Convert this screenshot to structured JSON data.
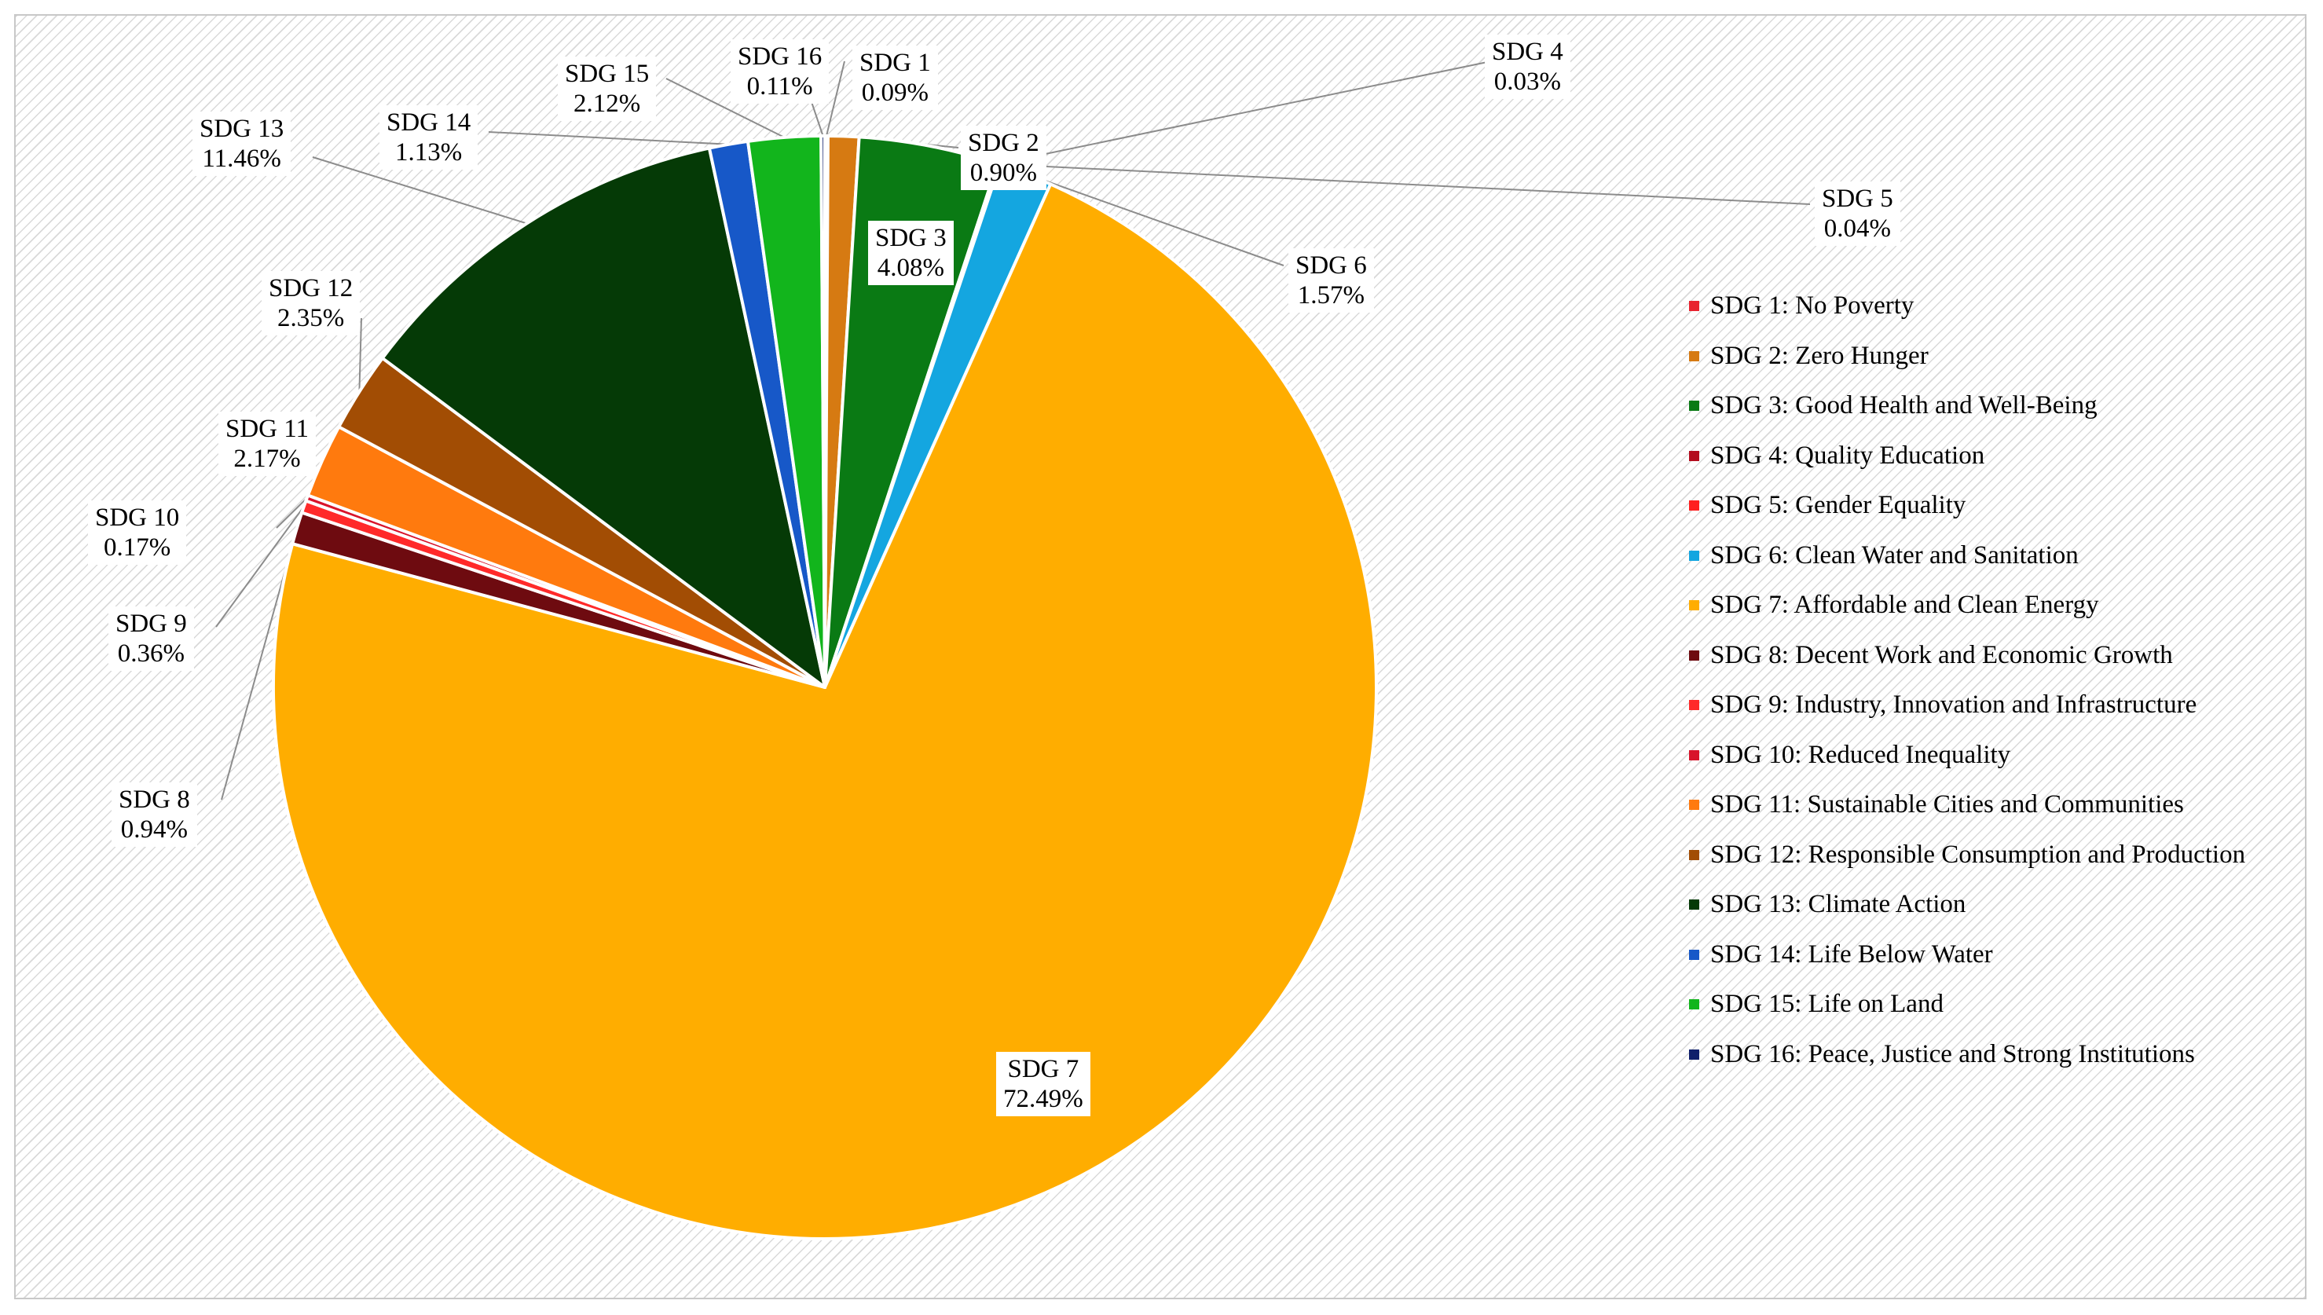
{
  "chart_data": {
    "type": "pie",
    "title": "",
    "slices": [
      {
        "id": "sdg1",
        "label": "SDG 1",
        "legend": "SDG 1: No Poverty",
        "value": 0.09,
        "display": "0.09%",
        "color": "#e5243b"
      },
      {
        "id": "sdg2",
        "label": "SDG 2",
        "legend": "SDG 2: Zero Hunger",
        "value": 0.9,
        "display": "0.90%",
        "color": "#dda63a"
      },
      {
        "id": "sdg3",
        "label": "SDG 3",
        "legend": "SDG 3: Good Health and Well-Being",
        "value": 4.08,
        "display": "4.08%",
        "color": "#4c9f38"
      },
      {
        "id": "sdg4",
        "label": "SDG 4",
        "legend": "SDG 4: Quality Education",
        "value": 0.03,
        "display": "0.03%",
        "color": "#c5192d"
      },
      {
        "id": "sdg5",
        "label": "SDG 5",
        "legend": "SDG 5: Gender Equality",
        "value": 0.04,
        "display": "0.04%",
        "color": "#ff3a21"
      },
      {
        "id": "sdg6",
        "label": "SDG 6",
        "legend": "SDG 6: Clean Water and Sanitation",
        "value": 1.57,
        "display": "1.57%",
        "color": "#26bde2"
      },
      {
        "id": "sdg7",
        "label": "SDG 7",
        "legend": "SDG 7: Affordable and Clean Energy",
        "value": 72.49,
        "display": "72.49%",
        "color": "#fcc30b"
      },
      {
        "id": "sdg8",
        "label": "SDG 8",
        "legend": "SDG 8: Decent Work and Economic Growth",
        "value": 0.94,
        "display": "0.94%",
        "color": "#a21942"
      },
      {
        "id": "sdg9",
        "label": "SDG 9",
        "legend": "SDG 9: Industry, Innovation and Infrastructure",
        "value": 0.36,
        "display": "0.36%",
        "color": "#fd6925"
      },
      {
        "id": "sdg10",
        "label": "SDG 10",
        "legend": "SDG 10: Reduced Inequality",
        "value": 0.17,
        "display": "0.17%",
        "color": "#dd1367"
      },
      {
        "id": "sdg11",
        "label": "SDG 11",
        "legend": "SDG 11: Sustainable Cities and Communities",
        "value": 2.17,
        "display": "2.17%",
        "color": "#fd9d24"
      },
      {
        "id": "sdg12",
        "label": "SDG 12",
        "legend": "SDG 12: Responsible Consumption and Production",
        "value": 2.35,
        "display": "2.35%",
        "color": "#bf8b2e"
      },
      {
        "id": "sdg13",
        "label": "SDG 13",
        "legend": "SDG 13: Climate Action",
        "value": 11.46,
        "display": "11.46%",
        "color": "#3f7e44"
      },
      {
        "id": "sdg14",
        "label": "SDG 14",
        "legend": "SDG 14: Life Below Water",
        "value": 1.13,
        "display": "1.13%",
        "color": "#0a97d9"
      },
      {
        "id": "sdg15",
        "label": "SDG 15",
        "legend": "SDG 15: Life on Land",
        "value": 2.12,
        "display": "2.12%",
        "color": "#56c02b"
      },
      {
        "id": "sdg16",
        "label": "SDG 16",
        "legend": "SDG 16: Peace,  Justice and Strong Institutions",
        "value": 0.11,
        "display": "0.11%",
        "color": "#00689d"
      }
    ],
    "legend_placement": "right",
    "start_angle_deg": 0,
    "direction": "clockwise"
  },
  "colors": {
    "sdg1": "#e8232f",
    "sdg2": "#d67a12",
    "sdg3": "#0a7a14",
    "sdg4": "#b30d1e",
    "sdg5": "#ff1f1f",
    "sdg6": "#14a6e0",
    "sdg7": "#ffad00",
    "sdg8": "#6e0b10",
    "sdg9": "#ff2a2a",
    "sdg10": "#d8142b",
    "sdg11": "#ff7a0e",
    "sdg12": "#a24d04",
    "sdg13": "#053a06",
    "sdg14": "#1758c8",
    "sdg15": "#12b51c",
    "sdg16": "#0f1f6b"
  }
}
